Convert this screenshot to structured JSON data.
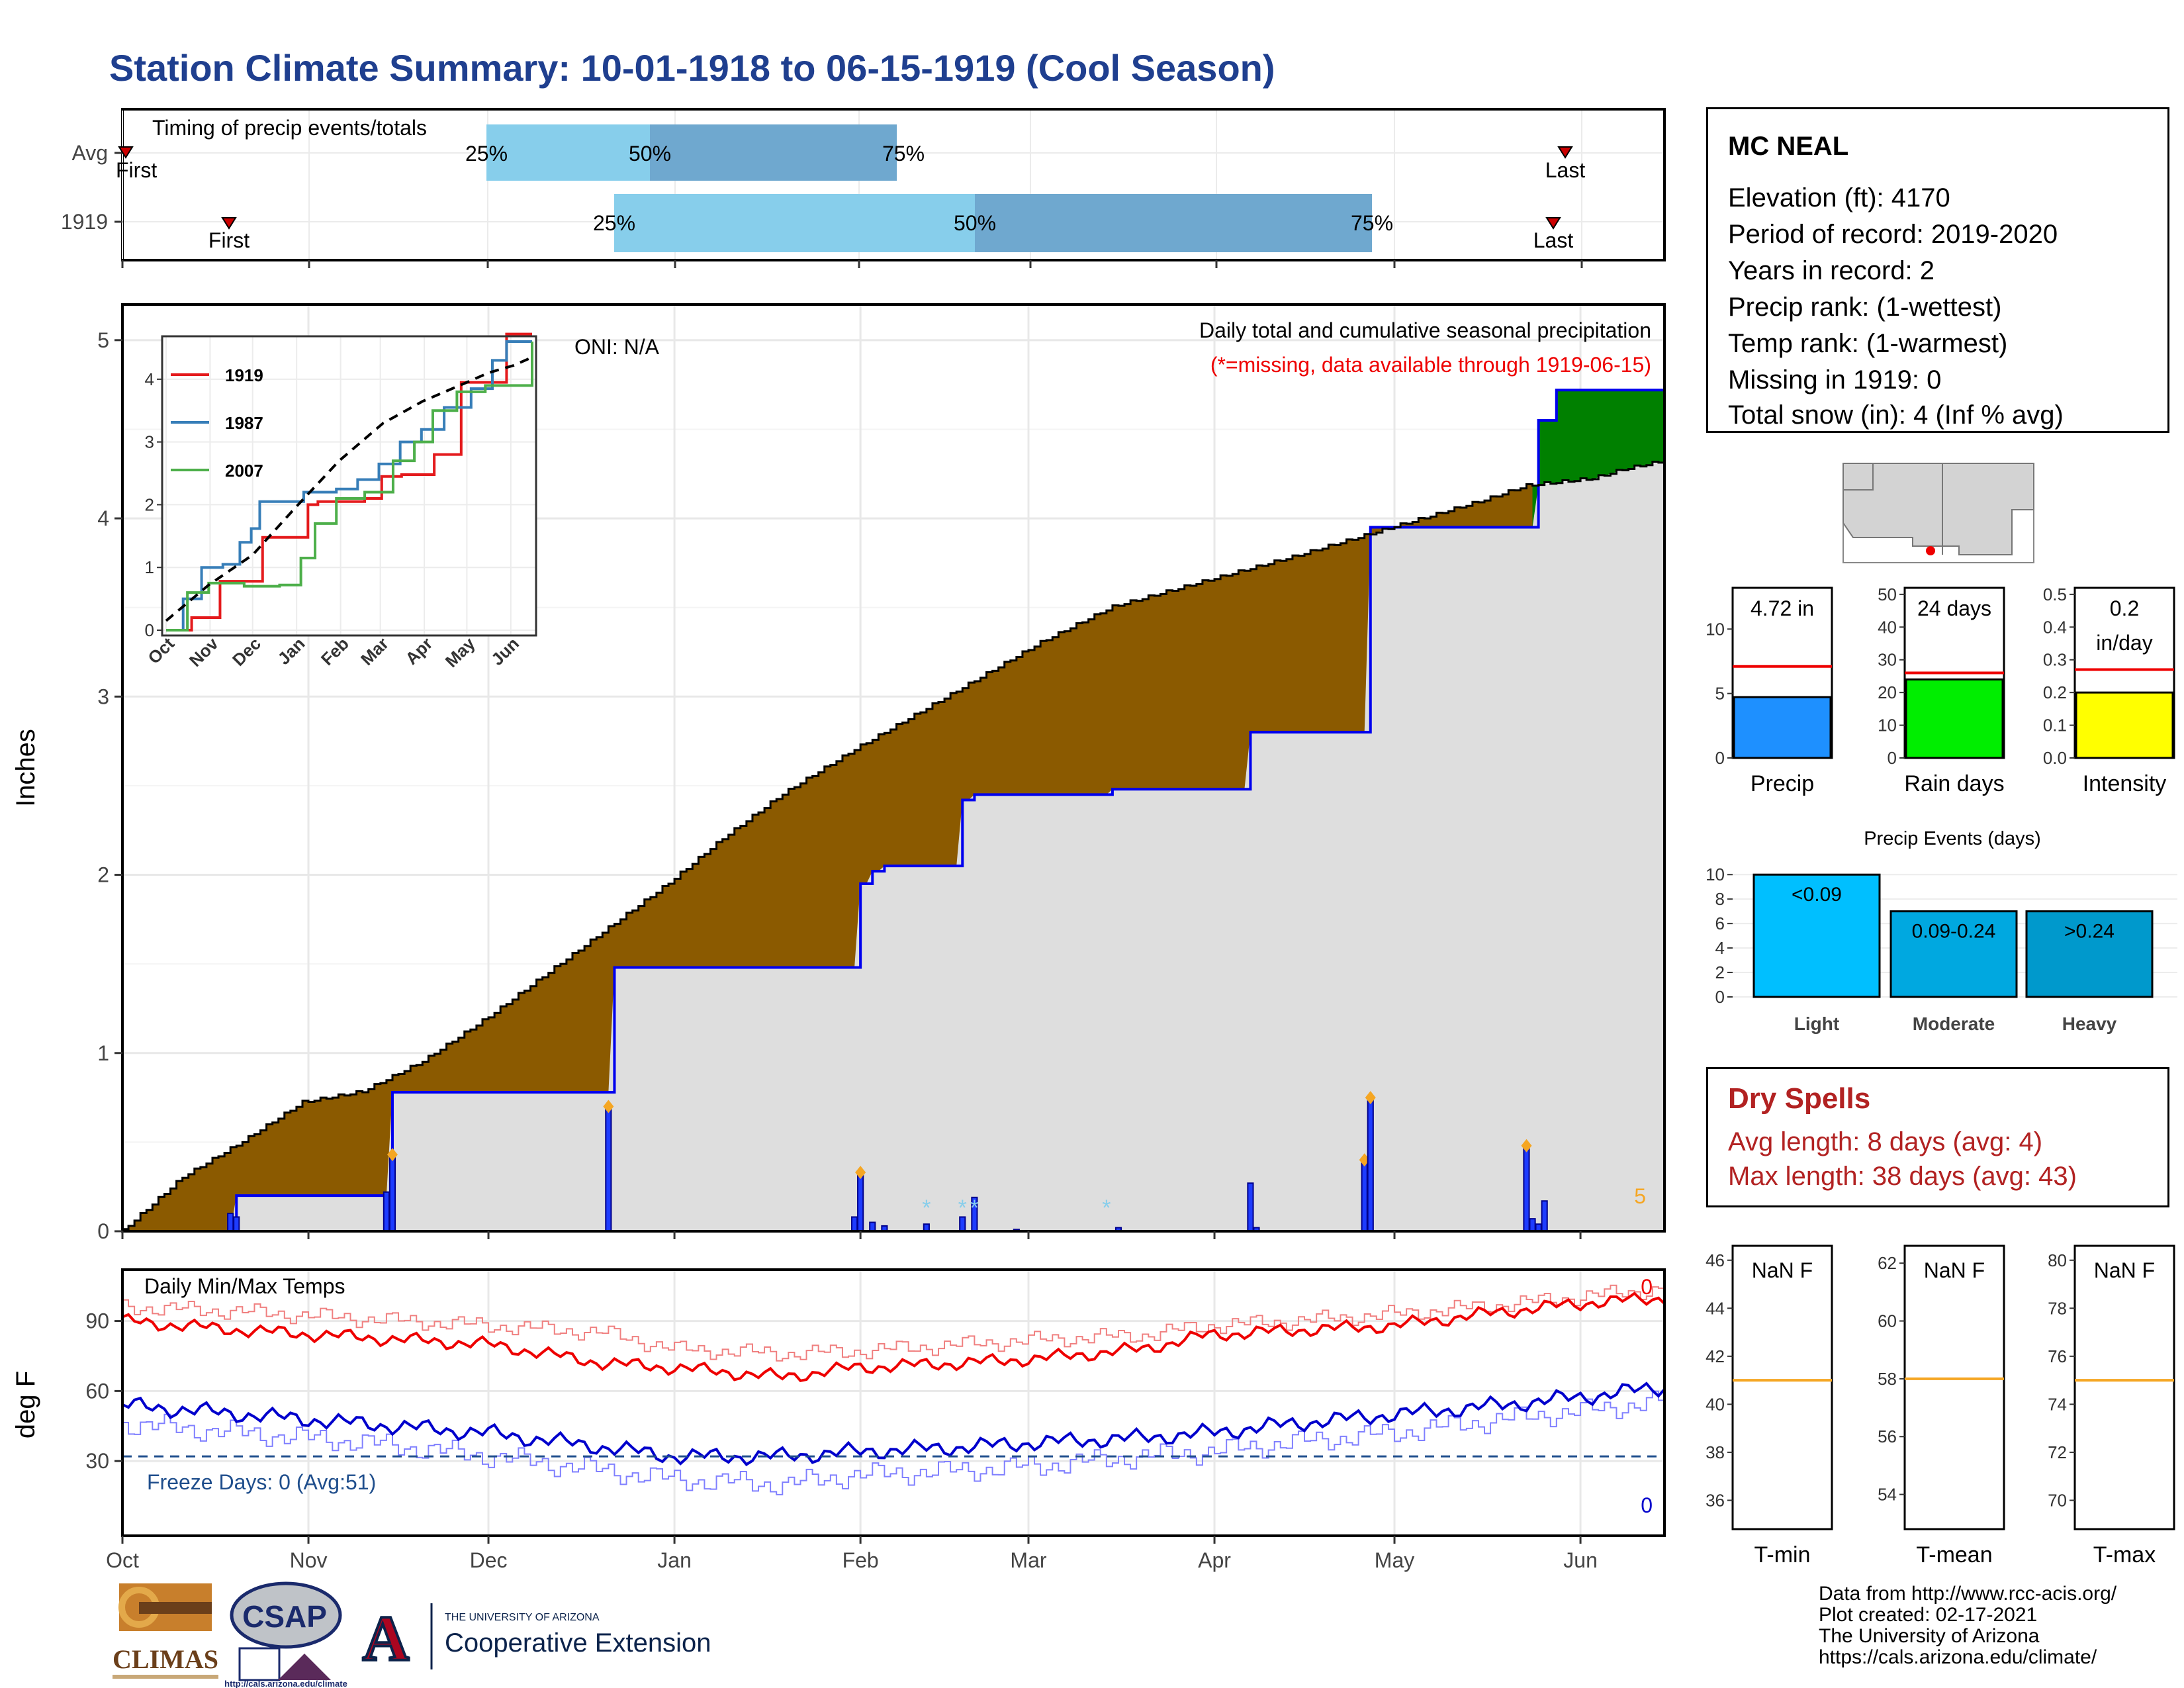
{
  "title": "Station Climate Summary: 10-01-1918 to 06-15-1919 (Cool Season)",
  "timing": {
    "title": "Timing of precip events/totals",
    "rows": [
      {
        "label": "Avg",
        "first": "First",
        "last": "Last",
        "p25": "25%",
        "p50": "50%",
        "p75": "75%"
      },
      {
        "label": "1919",
        "first": "First",
        "last": "Last",
        "p25": "25%",
        "p50": "50%",
        "p75": "75%"
      }
    ]
  },
  "main_chart": {
    "ylabel": "Inches",
    "oni": "ONI: N/A",
    "subtitle": "Daily total and cumulative seasonal precipitation",
    "missing_note": "(*=missing, data available through 1919-06-15)",
    "corner_count": "5",
    "y_ticks": [
      "0",
      "1",
      "2",
      "3",
      "4",
      "5"
    ],
    "months": [
      "Oct",
      "Nov",
      "Dec",
      "Jan",
      "Feb",
      "Mar",
      "Apr",
      "May",
      "Jun"
    ]
  },
  "inset": {
    "legend": [
      "1919",
      "1987",
      "2007"
    ],
    "y_ticks": [
      "0",
      "1",
      "2",
      "3",
      "4"
    ],
    "months": [
      "Oct",
      "Nov",
      "Dec",
      "Jan",
      "Feb",
      "Mar",
      "Apr",
      "May",
      "Jun"
    ]
  },
  "temp_chart": {
    "title": "Daily Min/Max Temps",
    "ylabel": "deg F",
    "y_ticks": [
      "30",
      "60",
      "90"
    ],
    "freeze": "Freeze Days: 0 (Avg:51)",
    "max_count": "0",
    "min_count": "0"
  },
  "station": {
    "name": "MC NEAL",
    "lines": [
      "Elevation (ft): 4170",
      "Period of record: 2019-2020",
      "Years in record: 2",
      "Precip rank:  (1-wettest)",
      "Temp rank:  (1-warmest)",
      "Missing in 1919: 0",
      "Total snow (in): 4 (Inf % avg)"
    ]
  },
  "mini_bars": [
    {
      "label": "Precip",
      "value_text": "4.72 in",
      "ticks": [
        "0",
        "5",
        "10"
      ],
      "value": 4.72,
      "avg": 7.1,
      "ymax": 13.2,
      "color": "#1e90ff"
    },
    {
      "label": "Rain days",
      "value_text": "24 days",
      "ticks": [
        "0",
        "10",
        "20",
        "30",
        "40",
        "50"
      ],
      "value": 24,
      "avg": 26,
      "ymax": 52,
      "color": "#00ee00"
    },
    {
      "label": "Intensity",
      "value_text_1": "0.2",
      "value_text_2": "in/day",
      "ticks": [
        "0.0",
        "0.1",
        "0.2",
        "0.3",
        "0.4",
        "0.5"
      ],
      "value": 0.2,
      "avg": 0.27,
      "ymax": 0.52,
      "color": "#ffff00"
    }
  ],
  "events_chart": {
    "title": "Precip Events (days)",
    "ticks": [
      "0",
      "2",
      "4",
      "6",
      "8",
      "10"
    ],
    "categories": [
      "Light",
      "Moderate",
      "Heavy"
    ],
    "bar_labels": [
      "<0.09",
      "0.09-0.24",
      ">0.24"
    ],
    "values": [
      10,
      7,
      7
    ],
    "colors": [
      "#00bfff",
      "#00a8e0",
      "#0099cc"
    ]
  },
  "dry_spells": {
    "title": "Dry Spells",
    "avg": "Avg length: 8 days (avg: 4)",
    "max": "Max length: 38 days (avg: 43)"
  },
  "temp_boxes": [
    {
      "label": "T-min",
      "value": "NaN F",
      "ticks": [
        "36",
        "38",
        "40",
        "42",
        "44",
        "46"
      ]
    },
    {
      "label": "T-mean",
      "value": "NaN F",
      "ticks": [
        "54",
        "56",
        "58",
        "60",
        "62"
      ]
    },
    {
      "label": "T-max",
      "value": "NaN F",
      "ticks": [
        "70",
        "72",
        "74",
        "76",
        "78",
        "80"
      ]
    }
  ],
  "credits": [
    "Data from http://www.rcc-acis.org/",
    "Plot created: 02-17-2021",
    "The University of Arizona",
    "https://cals.arizona.edu/climate/"
  ],
  "logos": {
    "climas": "CLIMAS",
    "csap": "CSAP",
    "csap_url": "http://cals.arizona.edu/climate",
    "ua_small": "THE UNIVERSITY OF ARIZONA",
    "ua_big": "Cooperative Extension"
  },
  "chart_data": {
    "type": "area",
    "title": "Daily total and cumulative seasonal precipitation",
    "ylabel": "Inches",
    "ylim": [
      0,
      5.2
    ],
    "x_unit": "day of season (Oct 1 = 0)",
    "cumulative_avg": {
      "x": [
        0,
        10,
        20,
        30,
        40,
        50,
        61,
        75,
        91,
        100,
        110,
        122,
        135,
        153,
        165,
        181,
        195,
        212,
        227,
        234,
        245,
        250,
        257
      ],
      "y": [
        0,
        0.3,
        0.5,
        0.72,
        0.78,
        0.95,
        1.2,
        1.55,
        1.95,
        2.2,
        2.45,
        2.7,
        2.95,
        3.3,
        3.5,
        3.65,
        3.78,
        3.95,
        4.1,
        4.18,
        4.22,
        4.27,
        4.32
      ]
    },
    "cumulative_1919": {
      "x": [
        0,
        18,
        19,
        44,
        45,
        81,
        82,
        122,
        123,
        125,
        127,
        139,
        140,
        142,
        165,
        166,
        188,
        189,
        207,
        208,
        235,
        236,
        238,
        239,
        257
      ],
      "y": [
        0,
        0,
        0.2,
        0.2,
        0.78,
        0.78,
        1.48,
        1.48,
        1.95,
        2.02,
        2.05,
        2.05,
        2.42,
        2.45,
        2.48,
        2.48,
        2.8,
        2.8,
        2.8,
        3.95,
        3.95,
        4.55,
        4.55,
        4.72,
        4.72
      ]
    },
    "daily_bars": {
      "x": [
        18,
        19,
        44,
        45,
        81,
        122,
        123,
        125,
        127,
        134,
        140,
        142,
        149,
        166,
        188,
        189,
        207,
        208,
        234,
        235,
        236,
        237
      ],
      "y": [
        0.1,
        0.08,
        0.22,
        0.43,
        0.7,
        0.08,
        0.33,
        0.05,
        0.03,
        0.04,
        0.08,
        0.19,
        0.01,
        0.02,
        0.27,
        0.02,
        0.4,
        0.75,
        0.48,
        0.07,
        0.04,
        0.17
      ]
    },
    "snow_marker_days": [
      134,
      140,
      142,
      164
    ],
    "inset": {
      "type": "line",
      "ylim": [
        0,
        4.6
      ],
      "series": [
        {
          "name": "1919",
          "color": "#e41a1c",
          "x": [
            0,
            18,
            35,
            38,
            62,
            68,
            90,
            100,
            107,
            140,
            152,
            166,
            189,
            208,
            235,
            240,
            258
          ],
          "y": [
            0,
            0.2,
            0.2,
            0.78,
            0.78,
            1.48,
            1.48,
            2.0,
            2.05,
            2.1,
            2.45,
            2.48,
            2.8,
            3.95,
            3.95,
            4.72,
            4.72
          ]
        },
        {
          "name": "1987",
          "color": "#377eb8",
          "x": [
            0,
            12,
            25,
            40,
            52,
            60,
            66,
            88,
            97,
            120,
            135,
            150,
            165,
            180,
            196,
            215,
            230,
            240,
            258
          ],
          "y": [
            0,
            0.5,
            1.0,
            1.05,
            1.4,
            1.62,
            2.05,
            2.05,
            2.2,
            2.25,
            2.4,
            2.65,
            3.0,
            3.2,
            3.55,
            3.85,
            4.3,
            4.6,
            4.6
          ]
        },
        {
          "name": "2007",
          "color": "#4daf4a",
          "x": [
            0,
            15,
            30,
            55,
            80,
            95,
            105,
            120,
            140,
            160,
            175,
            188,
            205,
            225,
            240,
            258
          ],
          "y": [
            0,
            0.6,
            0.75,
            0.7,
            0.72,
            1.15,
            1.7,
            2.1,
            2.2,
            2.7,
            3.0,
            3.5,
            3.8,
            3.9,
            3.9,
            4.6
          ]
        },
        {
          "name": "Average",
          "color": "#000000",
          "x": [
            0,
            30,
            61,
            91,
            122,
            153,
            181,
            212,
            227,
            245,
            258
          ],
          "y": [
            0.15,
            0.72,
            1.2,
            1.95,
            2.7,
            3.3,
            3.65,
            3.95,
            4.1,
            4.22,
            4.35
          ]
        }
      ]
    },
    "temperature": {
      "ylim": [
        -2,
        112
      ],
      "x_days": [
        0,
        20,
        40,
        61,
        80,
        92,
        110,
        122,
        140,
        153,
        170,
        181,
        195,
        212,
        230,
        245,
        258
      ],
      "tmax_1919": [
        90,
        86,
        83,
        80,
        72,
        70,
        66,
        70,
        72,
        74,
        78,
        84,
        86,
        88,
        94,
        98,
        100
      ],
      "tmax_avg": [
        96,
        94,
        91,
        88,
        85,
        78,
        76,
        77,
        80,
        82,
        84,
        88,
        90,
        93,
        97,
        101,
        104
      ],
      "tmin_1919": [
        54,
        50,
        46,
        42,
        36,
        32,
        32,
        34,
        36,
        38,
        40,
        42,
        46,
        50,
        54,
        58,
        62
      ],
      "tmin_avg": [
        46,
        42,
        38,
        32,
        26,
        22,
        20,
        24,
        26,
        28,
        32,
        34,
        38,
        42,
        48,
        52,
        56
      ],
      "freeze_line": 32
    }
  }
}
